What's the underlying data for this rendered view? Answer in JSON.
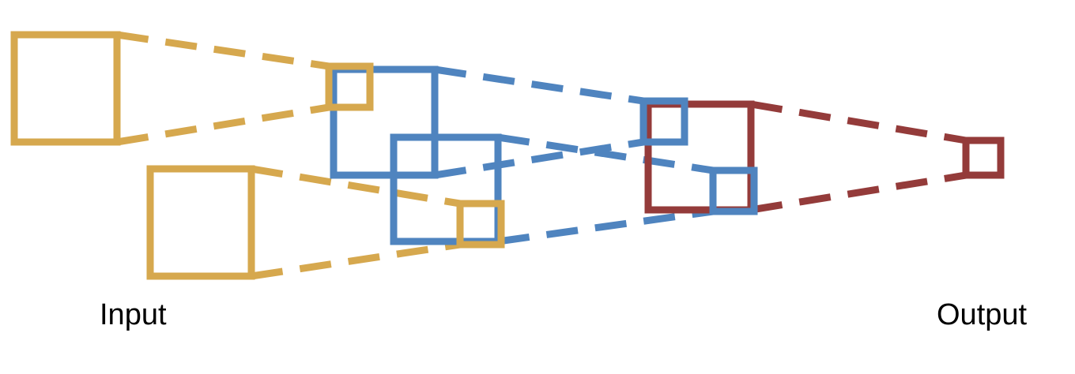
{
  "labels": {
    "input": "Input",
    "output": "Output"
  },
  "colors": {
    "layer1": "#D6A84E",
    "layer2": "#4F84BF",
    "layer3": "#943B3A",
    "text": "#000000"
  }
}
